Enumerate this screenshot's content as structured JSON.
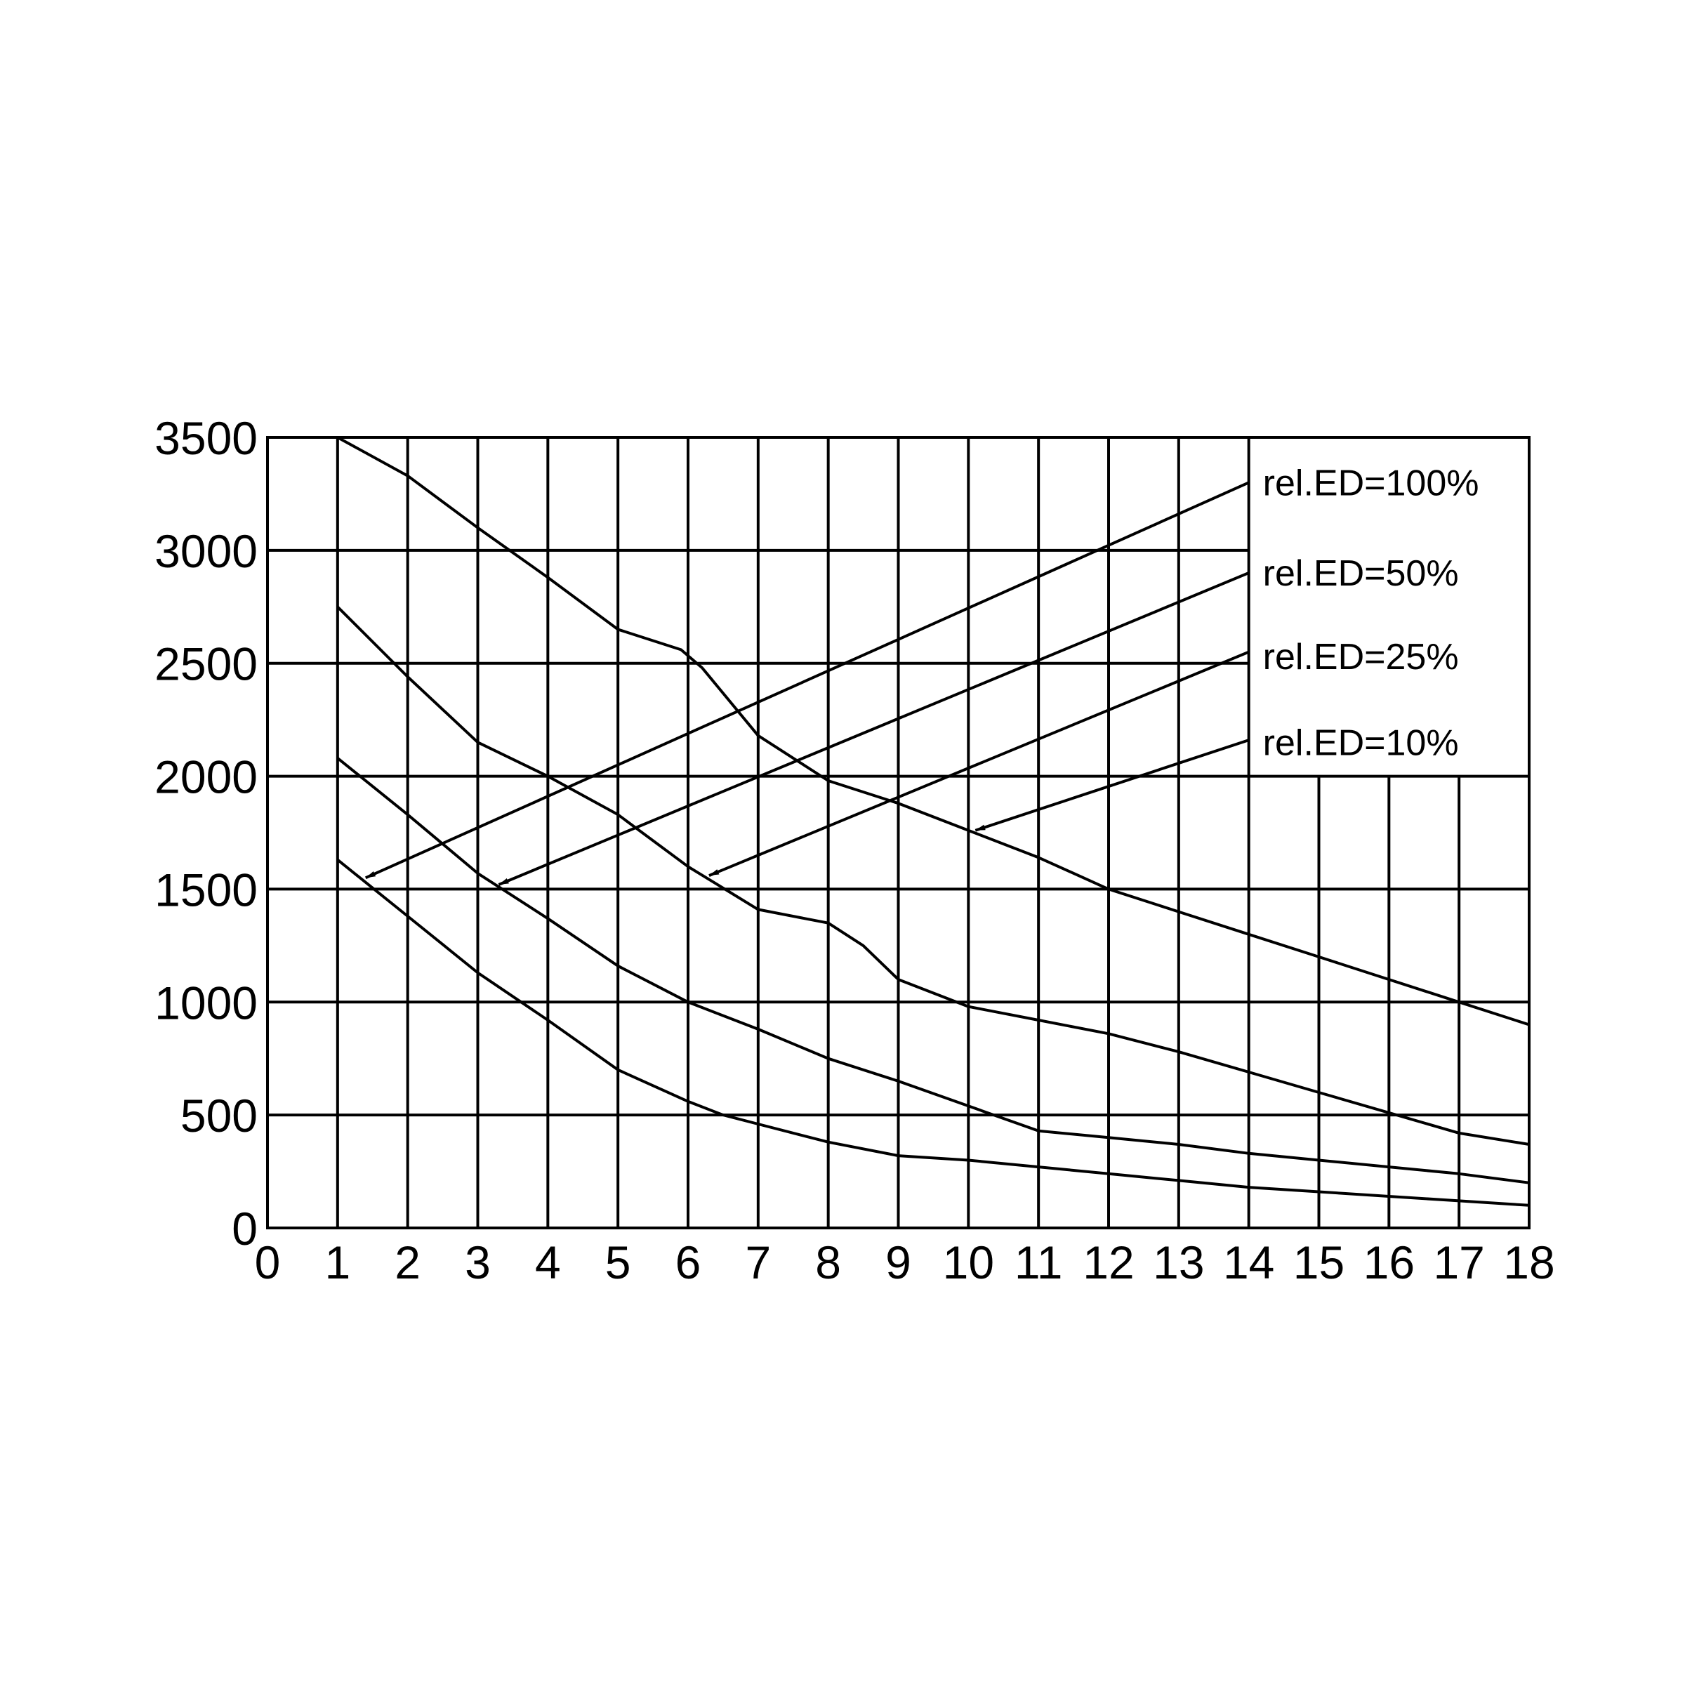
{
  "chart_data": {
    "type": "line",
    "title": "",
    "xlabel": "",
    "ylabel": "",
    "xlim": [
      0,
      18
    ],
    "ylim": [
      0,
      3500
    ],
    "x_ticks": [
      "0",
      "1",
      "2",
      "3",
      "4",
      "5",
      "6",
      "7",
      "8",
      "9",
      "10",
      "11",
      "12",
      "13",
      "14",
      "15",
      "16",
      "17",
      "18"
    ],
    "y_ticks": [
      "0",
      "500",
      "1000",
      "1500",
      "2000",
      "2500",
      "3000",
      "3500"
    ],
    "grid": true,
    "legend_placement": "top-right",
    "series": [
      {
        "name": "rel.ED=10%",
        "x": [
          1,
          2,
          3,
          4,
          5,
          5.9,
          6.2,
          7,
          8,
          9,
          10,
          11,
          12,
          13,
          14,
          15,
          16,
          17,
          18
        ],
        "y": [
          3500,
          3330,
          3100,
          2880,
          2650,
          2560,
          2480,
          2180,
          1980,
          1880,
          1760,
          1640,
          1500,
          1400,
          1300,
          1200,
          1100,
          1000,
          900
        ]
      },
      {
        "name": "rel.ED=25%",
        "x": [
          1,
          2,
          3,
          4,
          5,
          6,
          7,
          8,
          8.5,
          9,
          10,
          11,
          12,
          13,
          14,
          15,
          16,
          17,
          18
        ],
        "y": [
          2750,
          2440,
          2150,
          2000,
          1830,
          1600,
          1410,
          1350,
          1250,
          1100,
          980,
          920,
          860,
          780,
          690,
          600,
          510,
          420,
          370
        ]
      },
      {
        "name": "rel.ED=50%",
        "x": [
          1,
          2,
          3,
          4,
          5,
          6,
          7,
          8,
          9,
          10,
          11,
          12,
          13,
          14,
          15,
          16,
          17,
          18
        ],
        "y": [
          2080,
          1830,
          1570,
          1370,
          1160,
          1000,
          880,
          750,
          650,
          540,
          430,
          400,
          370,
          330,
          300,
          270,
          240,
          200
        ]
      },
      {
        "name": "rel.ED=100%",
        "x": [
          1,
          2,
          3,
          4,
          5,
          6,
          6.5,
          7,
          8,
          9,
          10,
          11,
          12,
          13,
          14,
          15,
          16,
          17,
          18
        ],
        "y": [
          1630,
          1380,
          1130,
          920,
          700,
          560,
          500,
          460,
          380,
          320,
          300,
          270,
          240,
          210,
          180,
          160,
          140,
          120,
          100
        ]
      }
    ],
    "annotations": [
      {
        "text": "rel.ED=100%",
        "label_y": 3300,
        "arrow_from": [
          14,
          3300
        ],
        "arrow_to": [
          1.4,
          1550
        ]
      },
      {
        "text": "rel.ED=50%",
        "label_y": 2900,
        "arrow_from": [
          14,
          2900
        ],
        "arrow_to": [
          3.3,
          1520
        ]
      },
      {
        "text": "rel.ED=25%",
        "label_y": 2530,
        "arrow_from": [
          14,
          2550
        ],
        "arrow_to": [
          6.3,
          1560
        ]
      },
      {
        "text": "rel.ED=10%",
        "label_y": 2150,
        "arrow_from": [
          14,
          2160
        ],
        "arrow_to": [
          10.1,
          1760
        ]
      }
    ],
    "legend_box": {
      "x": [
        14,
        18
      ],
      "y": [
        2000,
        3500
      ]
    }
  }
}
